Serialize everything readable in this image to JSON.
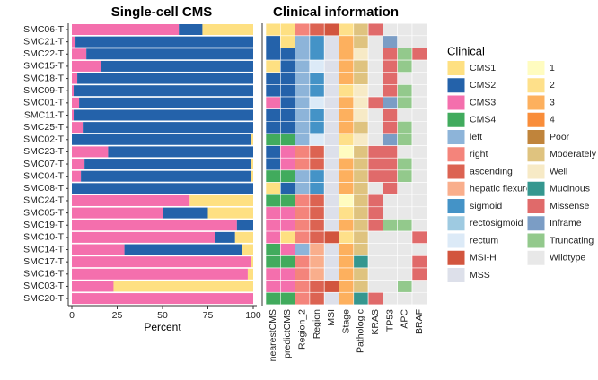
{
  "chart_data": [
    {
      "type": "bar",
      "orientation": "horizontal",
      "stacked": true,
      "title": "Single-cell CMS",
      "x_label": "Percent",
      "categories": [
        "SMC06-T",
        "SMC21-T",
        "SMC22-T",
        "SMC15-T",
        "SMC18-T",
        "SMC09-T",
        "SMC01-T",
        "SMC11-T",
        "SMC25-T",
        "SMC02-T",
        "SMC23-T",
        "SMC07-T",
        "SMC04-T",
        "SMC08-T",
        "SMC24-T",
        "SMC05-T",
        "SMC19-T",
        "SMC10-T",
        "SMC14-T",
        "SMC17-T",
        "SMC16-T",
        "SMC03-T",
        "SMC20-T"
      ],
      "series": [
        {
          "color": "#F46FAD",
          "values": [
            59,
            2,
            8,
            16,
            3,
            1,
            4,
            1,
            6,
            0,
            20,
            7,
            5,
            0,
            65,
            50,
            91,
            79,
            29,
            99,
            97,
            23,
            100
          ]
        },
        {
          "color": "#2462AA",
          "values": [
            13,
            98,
            92,
            84,
            97,
            99,
            96,
            99,
            94,
            99,
            80,
            92,
            94,
            100,
            0,
            25,
            9,
            11,
            65,
            0,
            0,
            0,
            0
          ]
        },
        {
          "color": "#FEE082",
          "values": [
            28,
            0,
            0,
            0,
            0,
            0,
            0,
            0,
            0,
            1,
            0,
            1,
            1,
            0,
            35,
            25,
            0,
            10,
            6,
            1,
            3,
            77,
            0
          ]
        }
      ],
      "xlim": [
        0,
        100
      ],
      "xticks": [
        0,
        25,
        50,
        75,
        100
      ]
    },
    {
      "type": "heatmap",
      "title": "Clinical information",
      "columns": [
        "nearestCMS",
        "predictCMS",
        "Region_2",
        "Region",
        "MSI",
        "Stage",
        "Pathologic",
        "KRAS",
        "TP53",
        "APC",
        "BRAF"
      ],
      "cells": [
        [
          "CMS1",
          "CMS1",
          "right",
          "ascending",
          "MSI-H",
          "2",
          "Moderately",
          "Missense",
          "Wildtype",
          "Wildtype",
          "Wildtype"
        ],
        [
          "CMS2",
          "CMS1",
          "left",
          "sigmoid",
          "MSS",
          "3",
          "Moderately",
          "Wildtype",
          "Inframe",
          "Wildtype",
          "Wildtype"
        ],
        [
          "CMS2",
          "CMS2",
          "left",
          "sigmoid",
          "MSS",
          "3",
          "Well",
          "Wildtype",
          "Missense",
          "Truncating",
          "Missense"
        ],
        [
          "CMS1",
          "CMS2",
          "left",
          "rectum",
          "MSS",
          "3",
          "Moderately",
          "Wildtype",
          "Missense",
          "Truncating",
          "Wildtype"
        ],
        [
          "CMS2",
          "CMS2",
          "left",
          "sigmoid",
          "MSS",
          "3",
          "Moderately",
          "Wildtype",
          "Missense",
          "Wildtype",
          "Wildtype"
        ],
        [
          "CMS2",
          "CMS2",
          "left",
          "sigmoid",
          "MSS",
          "2",
          "Well",
          "Wildtype",
          "Missense",
          "Truncating",
          "Wildtype"
        ],
        [
          "CMS3",
          "CMS2",
          "left",
          "rectum",
          "MSS",
          "3",
          "Well",
          "Missense",
          "Inframe",
          "Truncating",
          "Wildtype"
        ],
        [
          "CMS2",
          "CMS2",
          "left",
          "sigmoid",
          "MSS",
          "3",
          "Well",
          "Wildtype",
          "Missense",
          "Wildtype",
          "Wildtype"
        ],
        [
          "CMS2",
          "CMS2",
          "left",
          "sigmoid",
          "MSS",
          "3",
          "Moderately",
          "Wildtype",
          "Missense",
          "Truncating",
          "Wildtype"
        ],
        [
          "CMS4",
          "CMS4",
          "left",
          "rectum",
          "MSS",
          "2",
          "Well",
          "Wildtype",
          "Inframe",
          "Truncating",
          "Wildtype"
        ],
        [
          "CMS2",
          "CMS3",
          "right",
          "ascending",
          "MSS",
          "1",
          "Moderately",
          "Missense",
          "Missense",
          "Wildtype",
          "Wildtype"
        ],
        [
          "CMS2",
          "CMS3",
          "right",
          "ascending",
          "MSS",
          "3",
          "Moderately",
          "Missense",
          "Missense",
          "Truncating",
          "Wildtype"
        ],
        [
          "CMS4",
          "CMS4",
          "left",
          "sigmoid",
          "MSS",
          "3",
          "Moderately",
          "Missense",
          "Missense",
          "Truncating",
          "Wildtype"
        ],
        [
          "CMS1",
          "CMS2",
          "left",
          "sigmoid",
          "MSS",
          "3",
          "Moderately",
          "Wildtype",
          "Missense",
          "Wildtype",
          "Wildtype"
        ],
        [
          "CMS4",
          "CMS4",
          "right",
          "ascending",
          "MSS",
          "1",
          "Moderately",
          "Missense",
          "Wildtype",
          "Wildtype",
          "Wildtype"
        ],
        [
          "CMS3",
          "CMS3",
          "right",
          "ascending",
          "MSS",
          "2",
          "Moderately",
          "Missense",
          "Wildtype",
          "Wildtype",
          "Wildtype"
        ],
        [
          "CMS3",
          "CMS3",
          "right",
          "ascending",
          "MSS",
          "3",
          "Moderately",
          "Missense",
          "Truncating",
          "Truncating",
          "Wildtype"
        ],
        [
          "CMS3",
          "CMS1",
          "right",
          "ascending",
          "MSI-H",
          "2",
          "Moderately",
          "Wildtype",
          "Wildtype",
          "Wildtype",
          "Missense"
        ],
        [
          "CMS4",
          "CMS3",
          "left",
          "hepatic flexure",
          "MSS",
          "3",
          "Moderately",
          "Wildtype",
          "Wildtype",
          "Wildtype",
          "Wildtype"
        ],
        [
          "CMS4",
          "CMS4",
          "right",
          "hepatic flexure",
          "MSS",
          "3",
          "Mucinous",
          "Wildtype",
          "Wildtype",
          "Wildtype",
          "Missense"
        ],
        [
          "CMS3",
          "CMS3",
          "right",
          "hepatic flexure",
          "MSS",
          "3",
          "Moderately",
          "Wildtype",
          "Wildtype",
          "Wildtype",
          "Missense"
        ],
        [
          "CMS3",
          "CMS3",
          "right",
          "ascending",
          "MSI-H",
          "3",
          "Moderately",
          "Wildtype",
          "Wildtype",
          "Truncating",
          "Wildtype"
        ],
        [
          "CMS4",
          "CMS4",
          "right",
          "ascending",
          "MSS",
          "3",
          "Mucinous",
          "Missense",
          "Wildtype",
          "Wildtype",
          "Wildtype"
        ]
      ],
      "legend": {
        "title": "Clinical",
        "columns": 2,
        "items": [
          {
            "label": "CMS1",
            "color": "#FEE082"
          },
          {
            "label": "CMS2",
            "color": "#2462AA"
          },
          {
            "label": "CMS3",
            "color": "#F46FAD"
          },
          {
            "label": "CMS4",
            "color": "#41AB5D"
          },
          {
            "label": "left",
            "color": "#8DB4D9"
          },
          {
            "label": "right",
            "color": "#F4847B"
          },
          {
            "label": "ascending",
            "color": "#DC6352"
          },
          {
            "label": "hepatic flexure",
            "color": "#F9AE8C"
          },
          {
            "label": "sigmoid",
            "color": "#4493C7"
          },
          {
            "label": "rectosigmoid",
            "color": "#9ECAE1"
          },
          {
            "label": "rectum",
            "color": "#DCEAF7"
          },
          {
            "label": "MSI-H",
            "color": "#D2553E"
          },
          {
            "label": "MSS",
            "color": "#DDE0EA"
          },
          {
            "label": "1",
            "color": "#FFFCC0"
          },
          {
            "label": "2",
            "color": "#FEE08A"
          },
          {
            "label": "3",
            "color": "#FDB05E"
          },
          {
            "label": "4",
            "color": "#F98D3A"
          },
          {
            "label": "Poor",
            "color": "#C0843B"
          },
          {
            "label": "Moderately",
            "color": "#DFC37F"
          },
          {
            "label": "Well",
            "color": "#F7EAC6"
          },
          {
            "label": "Mucinous",
            "color": "#35978F"
          },
          {
            "label": "Missense",
            "color": "#E06A6A"
          },
          {
            "label": "Inframe",
            "color": "#7B9DC5"
          },
          {
            "label": "Truncating",
            "color": "#93C98C"
          },
          {
            "label": "Wildtype",
            "color": "#E8E8E8"
          }
        ]
      }
    }
  ]
}
